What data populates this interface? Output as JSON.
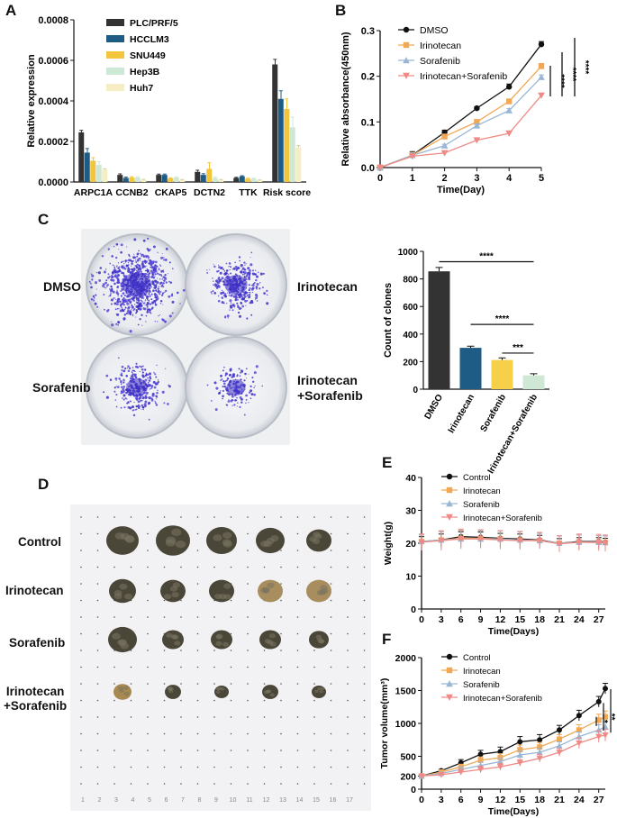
{
  "panel_labels": {
    "a": "A",
    "b": "B",
    "c": "C",
    "d": "D",
    "e": "E",
    "f": "F"
  },
  "colors": {
    "plc": "#333333",
    "hcclm3": "#1e5c85",
    "snu449": "#f3c53d",
    "hep3b": "#cfe8d5",
    "huh7": "#f4eec2",
    "dmso": "#111111",
    "irinotecan": "#f0a855",
    "sorafenib": "#99b6d4",
    "combo": "#ef8a86",
    "clone_dmso": "#333333",
    "clone_iri": "#1e5c85",
    "clone_sor": "#f7d04a",
    "clone_combo": "#cfe8d5"
  },
  "chart_data": [
    {
      "id": "A",
      "type": "bar",
      "title": "",
      "xlabel": "",
      "ylabel": "Relative expression",
      "ylim": [
        0,
        0.0008
      ],
      "yticks": [
        "0.0000",
        "0.0002",
        "0.0004",
        "0.0006",
        "0.0008"
      ],
      "categories": [
        "ARPC1A",
        "CCNB2",
        "CKAP5",
        "DCTN2",
        "TTK",
        "Risk score"
      ],
      "legend_position": "top-right",
      "series": [
        {
          "name": "PLC/PRF/5",
          "values": [
            0.000245,
            3.5e-05,
            3.5e-05,
            5e-05,
            2e-05,
            0.00058
          ],
          "errors": [
            1e-05,
            5e-06,
            4e-06,
            8e-06,
            3e-06,
            2.5e-05
          ]
        },
        {
          "name": "HCCLM3",
          "values": [
            0.000145,
            2e-05,
            3.5e-05,
            3.5e-05,
            2.8e-05,
            0.00041
          ],
          "errors": [
            2e-05,
            4e-06,
            4e-06,
            6e-06,
            3e-06,
            4e-05
          ]
        },
        {
          "name": "SNU449",
          "values": [
            0.000105,
            2.2e-05,
            1.8e-05,
            6.5e-05,
            1.6e-05,
            0.00036
          ],
          "errors": [
            1.5e-05,
            4e-06,
            3e-06,
            3e-05,
            3e-06,
            5e-05
          ]
        },
        {
          "name": "Hep3B",
          "values": [
            8.5e-05,
            2.2e-05,
            2.2e-05,
            2e-05,
            1.6e-05,
            0.00027
          ],
          "errors": [
            1.5e-05,
            4e-06,
            3e-06,
            5e-06,
            3e-06,
            5e-05
          ]
        },
        {
          "name": "Huh7",
          "values": [
            6e-05,
            1e-05,
            1e-05,
            1e-05,
            8e-06,
            0.00017
          ],
          "errors": [
            5e-06,
            3e-06,
            2e-06,
            2e-06,
            2e-06,
            1e-05
          ]
        }
      ]
    },
    {
      "id": "B",
      "type": "line",
      "xlabel": "Time(Day)",
      "ylabel": "Relative absorbance(450nm)",
      "xlim": [
        0,
        5
      ],
      "ylim": [
        0,
        0.3
      ],
      "xticks": [
        "0",
        "1",
        "2",
        "3",
        "4",
        "5"
      ],
      "yticks": [
        "0.0",
        "0.1",
        "0.2",
        "0.3"
      ],
      "legend_position": "top-left",
      "x": [
        0,
        1,
        2,
        3,
        4,
        5
      ],
      "series": [
        {
          "name": "DMSO",
          "marker": "circle",
          "values": [
            0,
            0.027,
            0.077,
            0.13,
            0.177,
            0.27
          ],
          "errors": [
            0.002,
            0.008,
            0.005,
            0.003,
            0.006,
            0.006
          ]
        },
        {
          "name": "Irinotecan",
          "marker": "square",
          "values": [
            0,
            0.027,
            0.068,
            0.1,
            0.145,
            0.222
          ],
          "errors": [
            0.002,
            0.006,
            0.004,
            0.005,
            0.005,
            0.006
          ]
        },
        {
          "name": "Sorafenib",
          "marker": "triangle-up",
          "values": [
            0,
            0.027,
            0.048,
            0.092,
            0.125,
            0.198
          ],
          "errors": [
            0.002,
            0.005,
            0.003,
            0.004,
            0.004,
            0.005
          ]
        },
        {
          "name": "Irinotecan+Sorafenib",
          "marker": "triangle-down",
          "values": [
            0,
            0.025,
            0.032,
            0.06,
            0.075,
            0.158
          ],
          "errors": [
            0.002,
            0.003,
            0.003,
            0.002,
            0.003,
            0.004
          ]
        }
      ],
      "significance": [
        "****",
        "****",
        "****"
      ]
    },
    {
      "id": "C",
      "type": "bar",
      "xlabel": "",
      "ylabel": "Count of clones",
      "ylim": [
        0,
        1000
      ],
      "yticks": [
        "0",
        "200",
        "400",
        "600",
        "800",
        "1000"
      ],
      "categories": [
        "DMSO",
        "Irinotecan",
        "Sorafenib",
        "Irinotecan+Sorafenib"
      ],
      "values": [
        855,
        300,
        212,
        100
      ],
      "errors": [
        28,
        12,
        15,
        12
      ],
      "significance": [
        "****",
        "****",
        "***"
      ]
    },
    {
      "id": "E",
      "type": "line",
      "xlabel": "Time(Days)",
      "ylabel": "Weight(g)",
      "xlim": [
        0,
        28
      ],
      "ylim": [
        0,
        40
      ],
      "xticks": [
        "0",
        "3",
        "6",
        "9",
        "12",
        "15",
        "18",
        "21",
        "24",
        "27"
      ],
      "yticks": [
        "0",
        "10",
        "20",
        "30",
        "40"
      ],
      "legend_position": "top-right",
      "x": [
        0,
        3,
        6,
        9,
        12,
        15,
        18,
        21,
        24,
        27,
        28
      ],
      "series": [
        {
          "name": "Control",
          "marker": "circle",
          "values": [
            20.5,
            21,
            22,
            21.8,
            21.5,
            21.3,
            21,
            20,
            20.5,
            20.5,
            20.3
          ],
          "errors": [
            1.5,
            1.8,
            1.5,
            1.6,
            1.5,
            1.5,
            1.4,
            1.4,
            1.2,
            1.2,
            1.2
          ]
        },
        {
          "name": "Irinotecan",
          "marker": "square",
          "values": [
            20.5,
            21,
            21.5,
            21.5,
            21.3,
            21,
            20.8,
            20,
            20.3,
            20.3,
            20.2
          ],
          "errors": [
            2,
            2.5,
            2.5,
            2.3,
            2.5,
            2.5,
            2.2,
            2.2,
            2.2,
            2,
            2
          ]
        },
        {
          "name": "Sorafenib",
          "marker": "triangle-up",
          "values": [
            20.5,
            21,
            21.3,
            21.3,
            21.3,
            21,
            20.8,
            20,
            20.3,
            20.3,
            20.2
          ],
          "errors": [
            2,
            2.5,
            2.5,
            2.5,
            2.5,
            2.5,
            2.2,
            2.2,
            2.2,
            2,
            2
          ]
        },
        {
          "name": "Irinotecan+Sorafenib",
          "marker": "triangle-down",
          "values": [
            20.3,
            20.8,
            21.3,
            21.3,
            21,
            20.8,
            20.8,
            19.8,
            20.3,
            20.2,
            20
          ],
          "errors": [
            2.5,
            3,
            3,
            2.8,
            2.8,
            2.8,
            2.5,
            2.5,
            2.5,
            2.5,
            2.5
          ]
        }
      ]
    },
    {
      "id": "F",
      "type": "line",
      "xlabel": "Time(Days)",
      "ylabel": "Tumor volume(mm³)",
      "xlim": [
        0,
        28
      ],
      "ylim": [
        0,
        2000
      ],
      "xticks": [
        "0",
        "3",
        "6",
        "9",
        "12",
        "15",
        "18",
        "21",
        "24",
        "27"
      ],
      "yticks": [
        "0",
        "200",
        "500",
        "1000",
        "1500",
        "2000"
      ],
      "legend_position": "top-right",
      "x": [
        0,
        3,
        6,
        9,
        12,
        15,
        18,
        21,
        24,
        27,
        28
      ],
      "series": [
        {
          "name": "Control",
          "marker": "circle",
          "values": [
            200,
            280,
            400,
            530,
            570,
            720,
            750,
            900,
            1120,
            1330,
            1530
          ],
          "errors": [
            10,
            20,
            50,
            60,
            70,
            80,
            80,
            70,
            80,
            80,
            80
          ]
        },
        {
          "name": "Irinotecan",
          "marker": "square",
          "values": [
            200,
            260,
            340,
            440,
            480,
            600,
            640,
            760,
            900,
            1050,
            1100
          ],
          "errors": [
            10,
            20,
            40,
            50,
            60,
            70,
            70,
            70,
            80,
            90,
            90
          ]
        },
        {
          "name": "Sorafenib",
          "marker": "triangle-up",
          "values": [
            200,
            240,
            300,
            360,
            420,
            520,
            560,
            660,
            800,
            900,
            950
          ],
          "errors": [
            10,
            20,
            40,
            50,
            50,
            60,
            60,
            60,
            70,
            80,
            80
          ]
        },
        {
          "name": "Irinotecan+Sorafenib",
          "marker": "triangle-down",
          "values": [
            200,
            220,
            260,
            300,
            340,
            400,
            470,
            560,
            700,
            800,
            820
          ],
          "errors": [
            10,
            20,
            40,
            50,
            50,
            50,
            60,
            60,
            80,
            90,
            90
          ]
        }
      ],
      "significance": [
        "*",
        "**",
        "****"
      ]
    }
  ],
  "panel_c": {
    "plate_labels": [
      "DMSO",
      "Irinotecan",
      "Sorafenib",
      "Irinotecan\n+Sorafenib"
    ]
  },
  "panel_d": {
    "row_labels": [
      "Control",
      "Irinotecan",
      "Sorafenib",
      "Irinotecan\n+Sorafenib"
    ],
    "ruler_numbers": [
      "1",
      "2",
      "3",
      "4",
      "5",
      "6",
      "7",
      "8",
      "9",
      "10",
      "11",
      "12",
      "13",
      "14",
      "15",
      "16",
      "17"
    ]
  }
}
